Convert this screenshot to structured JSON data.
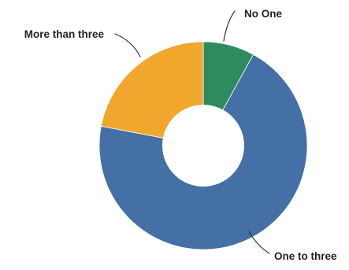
{
  "chart_data": {
    "type": "pie",
    "donut": true,
    "title": "",
    "categories": [
      "No One",
      "One to three",
      "More than three"
    ],
    "values": [
      8,
      70,
      22
    ],
    "colors": [
      "#2f8b5e",
      "#4470a5",
      "#f1a72d"
    ],
    "legend": "none",
    "labels": [
      {
        "text": "No One"
      },
      {
        "text": "One to three"
      },
      {
        "text": "More than three"
      }
    ]
  }
}
